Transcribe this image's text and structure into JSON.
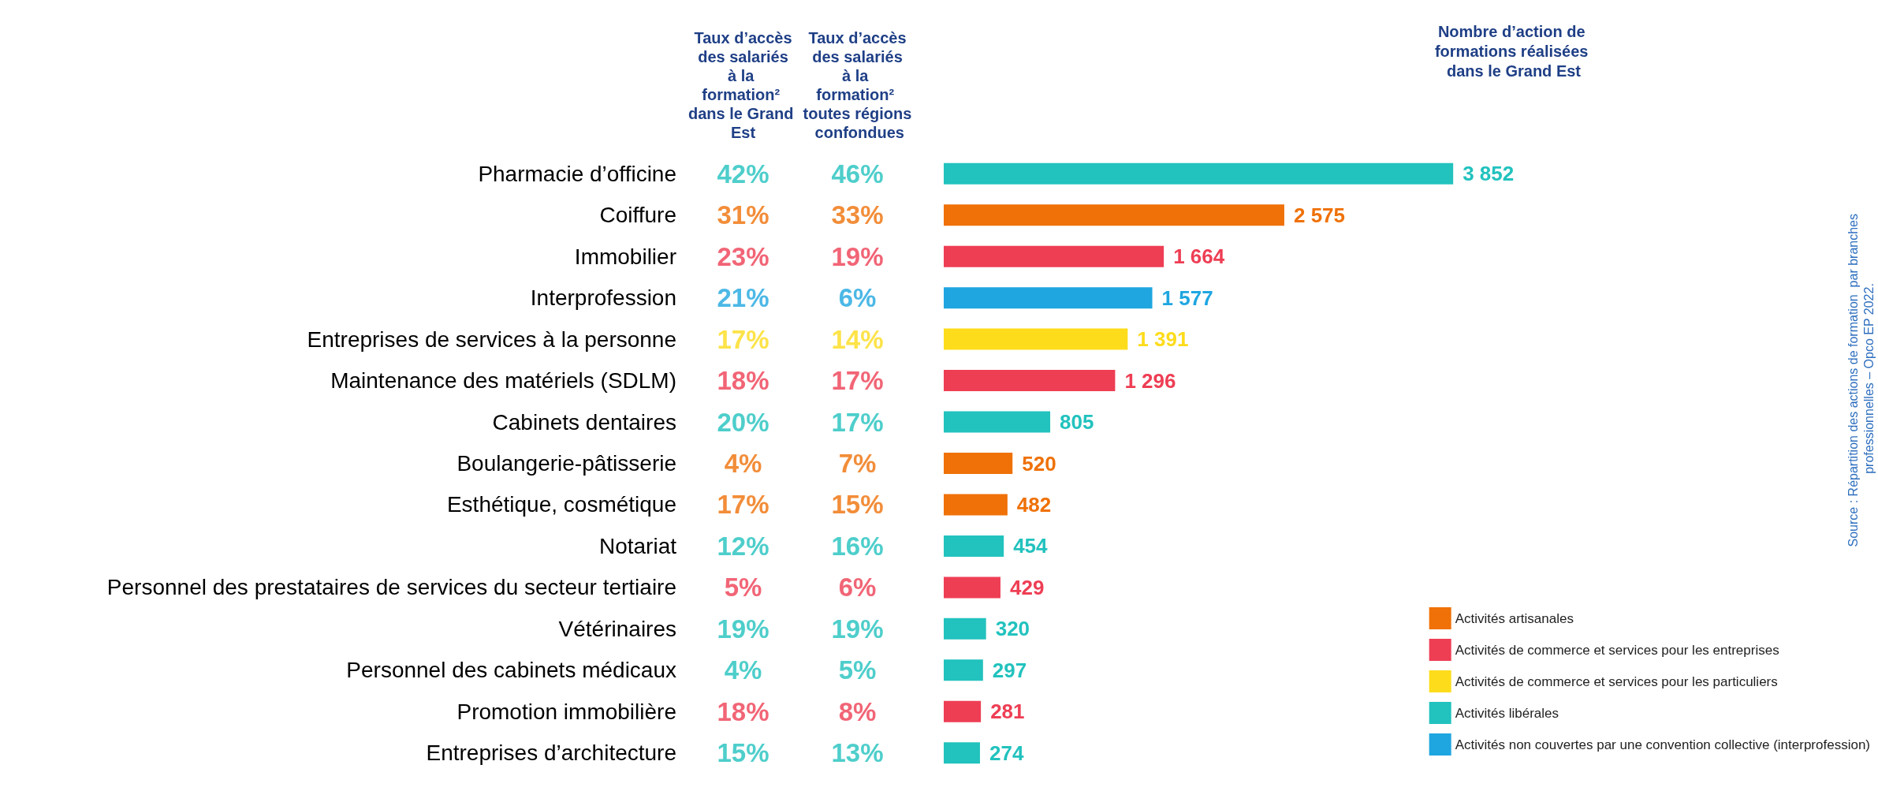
{
  "chart_data": [
    {
      "type": "other",
      "categories": [
        "Pharmacie d’officine",
        "Coiffure",
        "Immobilier",
        "Interprofession",
        "Entreprises de services à la personne",
        "Maintenance des matériels (SDLM)",
        "Cabinets dentaires",
        "Boulangerie-pâtisserie",
        "Esthétique, cosmétique",
        "Notariat",
        "Personnel des prestataires de services du secteur tertiaire",
        "Vétérinaires",
        "Personnel des cabinets médicaux",
        "Promotion immobilière",
        "Entreprises d’architecture"
      ],
      "series": [
        {
          "name": "Taux d’accès des salariés à la formation² dans le Grand Est",
          "values": [
            42,
            31,
            23,
            21,
            17,
            18,
            20,
            4,
            17,
            12,
            5,
            19,
            4,
            18,
            15
          ],
          "value_labels": [
            "42%",
            "31%",
            "23%",
            "21%",
            "17%",
            "18%",
            "20%",
            "4%",
            "17%",
            "12%",
            "5%",
            "19%",
            "4%",
            "18%",
            "15%"
          ],
          "colors": [
            "#22c2be",
            "#ef7108",
            "#ee3e54",
            "#1fa6e0",
            "#fddc1b",
            "#ee3e54",
            "#22c2be",
            "#ef7108",
            "#ef7108",
            "#22c2be",
            "#ee3e54",
            "#22c2be",
            "#22c2be",
            "#ee3e54",
            "#22c2be"
          ]
        },
        {
          "name": "Taux d’accès des salariés à la formation² toutes régions confondues",
          "values": [
            46,
            33,
            19,
            6,
            14,
            17,
            17,
            7,
            15,
            16,
            6,
            19,
            5,
            8,
            13
          ],
          "value_labels": [
            "46%",
            "33%",
            "19%",
            "6%",
            "14%",
            "17%",
            "17%",
            "7%",
            "15%",
            "16%",
            "6%",
            "19%",
            "5%",
            "8%",
            "13%"
          ],
          "colors": [
            "#22c2be",
            "#ef7108",
            "#ee3e54",
            "#1fa6e0",
            "#fddc1b",
            "#ee3e54",
            "#22c2be",
            "#ef7108",
            "#ef7108",
            "#22c2be",
            "#ee3e54",
            "#22c2be",
            "#22c2be",
            "#ee3e54",
            "#22c2be"
          ]
        }
      ]
    },
    {
      "type": "bar",
      "orientation": "horizontal",
      "stacked": true,
      "tick_labels": false,
      "legend": "bottom right",
      "title": "Nombre d’action de formations réalisées dans le Grand Est",
      "annotations": [
        "Source : Répartition des actions de formation  par branches professionnelles – Opco EP 2022."
      ],
      "categories": [
        null,
        null,
        null,
        null,
        null,
        null,
        null,
        null,
        null,
        null,
        null,
        null,
        null,
        null,
        null
      ],
      "series": [
        {
          "name": "Activités artisanales",
          "color": "#ef7108",
          "values": [
            null,
            2575,
            null,
            null,
            null,
            null,
            null,
            520,
            482,
            null,
            null,
            null,
            null,
            null,
            null
          ],
          "value_labels": [
            null,
            "2 575",
            null,
            null,
            null,
            null,
            null,
            "520",
            "482",
            null,
            null,
            null,
            null,
            null,
            null
          ]
        },
        {
          "name": "Activités de commerce et services pour les entreprises",
          "color": "#ee3e54",
          "values": [
            null,
            null,
            1664,
            null,
            null,
            1296,
            null,
            null,
            null,
            null,
            429,
            null,
            null,
            281,
            null
          ],
          "value_labels": [
            null,
            null,
            "1 664",
            null,
            null,
            "1 296",
            null,
            null,
            null,
            null,
            "429",
            null,
            null,
            "281",
            null
          ]
        },
        {
          "name": "Activités de commerce et services pour les particuliers",
          "color": "#fddc1b",
          "values": [
            null,
            null,
            null,
            null,
            1391,
            null,
            null,
            null,
            null,
            null,
            null,
            null,
            null,
            null,
            null
          ],
          "value_labels": [
            null,
            null,
            null,
            null,
            "1 391",
            null,
            null,
            null,
            null,
            null,
            null,
            null,
            null,
            null,
            null
          ]
        },
        {
          "name": "Activités libérales",
          "color": "#22c2be",
          "values": [
            3852,
            null,
            null,
            null,
            null,
            null,
            805,
            null,
            null,
            454,
            null,
            320,
            297,
            null,
            274
          ],
          "value_labels": [
            "3 852",
            null,
            null,
            null,
            null,
            null,
            "805",
            null,
            null,
            "454",
            null,
            "320",
            "297",
            null,
            "274"
          ]
        },
        {
          "name": "Activités non couvertes par une convention collective (interprofession)",
          "color": "#1fa6e0",
          "values": [
            null,
            null,
            null,
            1577,
            null,
            null,
            null,
            null,
            null,
            null,
            null,
            null,
            null,
            null,
            null
          ],
          "value_labels": [
            null,
            null,
            null,
            "1 577",
            null,
            null,
            null,
            null,
            null,
            null,
            null,
            null,
            null,
            null,
            null
          ]
        }
      ]
    }
  ]
}
